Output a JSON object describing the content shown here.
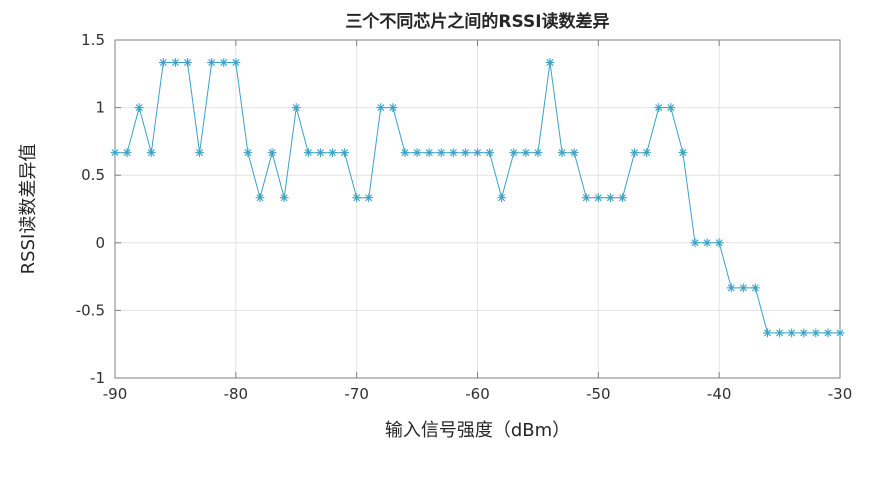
{
  "chart_data": {
    "type": "line",
    "title": "三个不同芯片之间的RSSI读数差异",
    "xlabel": "输入信号强度（dBm）",
    "ylabel": "RSSI读数差异值",
    "marker": "*",
    "grid": true,
    "legend": null,
    "line_color": "#3aa2c6",
    "grid_color": "#e3e3e3",
    "axis_color": "#808080",
    "xlim": [
      -90,
      -30
    ],
    "ylim": [
      -1,
      1.5
    ],
    "xticks": [
      -90,
      -80,
      -70,
      -60,
      -50,
      -40,
      -30
    ],
    "yticks": [
      -1,
      -0.5,
      0,
      0.5,
      1,
      1.5
    ],
    "xtick_labels": [
      "-90",
      "-80",
      "-70",
      "-60",
      "-50",
      "-40",
      "-30"
    ],
    "ytick_labels": [
      "-1",
      "-0.5",
      "0",
      "0.5",
      "1",
      "1.5"
    ],
    "x": [
      -90,
      -89,
      -88,
      -87,
      -86,
      -85,
      -84,
      -83,
      -82,
      -81,
      -80,
      -79,
      -78,
      -77,
      -76,
      -75,
      -74,
      -73,
      -72,
      -71,
      -70,
      -69,
      -68,
      -67,
      -66,
      -65,
      -64,
      -63,
      -62,
      -61,
      -60,
      -59,
      -58,
      -57,
      -56,
      -55,
      -54,
      -53,
      -52,
      -51,
      -50,
      -49,
      -48,
      -47,
      -46,
      -45,
      -44,
      -43,
      -42,
      -41,
      -40,
      -39,
      -38,
      -37,
      -36,
      -35,
      -34,
      -33,
      -32,
      -31,
      -30
    ],
    "y": [
      0.6667,
      0.6667,
      1,
      0.6667,
      1.3333,
      1.3333,
      1.3333,
      0.6667,
      1.3333,
      1.3333,
      1.3333,
      0.6667,
      0.3333,
      0.6667,
      0.3333,
      1,
      0.6667,
      0.6667,
      0.6667,
      0.6667,
      0.3333,
      0.3333,
      1,
      1,
      0.6667,
      0.6667,
      0.6667,
      0.6667,
      0.6667,
      0.6667,
      0.6667,
      0.6667,
      0.3333,
      0.6667,
      0.6667,
      0.6667,
      1.3333,
      0.6667,
      0.6667,
      0.3333,
      0.3333,
      0.3333,
      0.3333,
      0.6667,
      0.6667,
      1,
      1,
      0.6667,
      0,
      0,
      0,
      -0.3333,
      -0.3333,
      -0.3333,
      -0.6667,
      -0.6667,
      -0.6667,
      -0.6667,
      -0.6667,
      -0.6667,
      -0.6667
    ]
  }
}
